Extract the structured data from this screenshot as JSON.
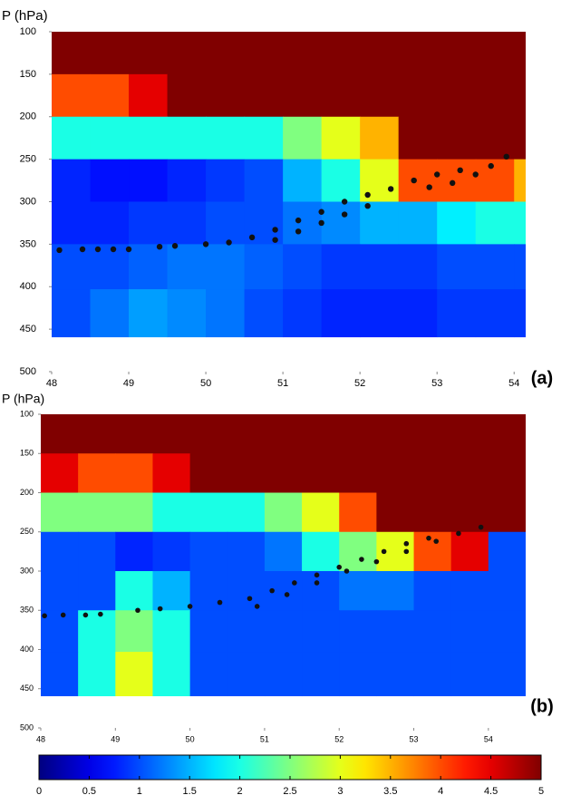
{
  "chart_data": [
    {
      "type": "heatmap",
      "ylabel": "P (hPa)",
      "panel_label": "(a)",
      "colormap": "jet",
      "clim": [
        0,
        5
      ],
      "xlim": [
        48,
        54.15
      ],
      "ylim": [
        500,
        100
      ],
      "xticks": [
        48,
        49,
        50,
        51,
        52,
        53,
        54
      ],
      "yticks": [
        100,
        150,
        200,
        250,
        300,
        350,
        400,
        450,
        500
      ],
      "x": [
        48.25,
        48.75,
        49.25,
        49.75,
        50.25,
        50.75,
        51.25,
        51.75,
        52.25,
        52.75,
        53.25,
        53.75,
        54.25
      ],
      "y": [
        125,
        175,
        225,
        275,
        325,
        375,
        431
      ],
      "z": [
        [
          5,
          5,
          5,
          5,
          5,
          5,
          5,
          5,
          5,
          5,
          5,
          5,
          5
        ],
        [
          4,
          4,
          4.5,
          5,
          5,
          5,
          5,
          5,
          5,
          5,
          5,
          5,
          5
        ],
        [
          2,
          2,
          2,
          2,
          2,
          2,
          2.5,
          3,
          3.5,
          5,
          5,
          5,
          5
        ],
        [
          0.8,
          0.7,
          0.7,
          0.8,
          0.9,
          1,
          1.5,
          2,
          3,
          4,
          4,
          4,
          3.5
        ],
        [
          0.8,
          0.8,
          0.9,
          0.9,
          1,
          1,
          1.2,
          1.3,
          1.5,
          1.5,
          1.8,
          2,
          2
        ],
        [
          1,
          1,
          1.1,
          1.2,
          1.2,
          1.1,
          1,
          0.9,
          0.9,
          0.9,
          1,
          1,
          1
        ],
        [
          1,
          1.2,
          1.4,
          1.3,
          1.2,
          1,
          0.9,
          0.8,
          0.8,
          0.8,
          0.9,
          0.9,
          0.9
        ]
      ],
      "scatter": {
        "color": "#111111",
        "x": [
          48.1,
          48.4,
          48.6,
          48.8,
          49,
          49.4,
          49.6,
          50,
          50.3,
          50.6,
          50.9,
          51.2,
          51.5,
          51.8,
          52.1,
          52.4,
          52.7,
          53,
          53.3,
          50.9,
          51.2,
          51.5,
          51.8,
          52.1,
          52.9,
          53.2,
          53.5,
          53.7,
          53.9
        ],
        "y": [
          357,
          356,
          356,
          356,
          356,
          353,
          352,
          350,
          348,
          342,
          333,
          322,
          312,
          300,
          292,
          285,
          275,
          268,
          263,
          345,
          335,
          325,
          315,
          305,
          283,
          278,
          268,
          258,
          247
        ]
      }
    },
    {
      "type": "heatmap",
      "ylabel": "P (hPa)",
      "panel_label": "(b)",
      "colormap": "jet",
      "clim": [
        0,
        5
      ],
      "xlim": [
        48,
        54.5
      ],
      "ylim": [
        500,
        100
      ],
      "xticks": [
        48,
        49,
        50,
        51,
        52,
        53,
        54
      ],
      "yticks": [
        100,
        150,
        200,
        250,
        300,
        350,
        400,
        450,
        500
      ],
      "x": [
        48.25,
        48.75,
        49.25,
        49.75,
        50.25,
        50.75,
        51.25,
        51.75,
        52.25,
        52.75,
        53.25,
        53.75,
        54.25
      ],
      "y": [
        125,
        175,
        225,
        275,
        325,
        375,
        431
      ],
      "z": [
        [
          5,
          5,
          5,
          5,
          5,
          5,
          5,
          5,
          5,
          5,
          5,
          5,
          5
        ],
        [
          4.5,
          4,
          4,
          4.5,
          5,
          5,
          5,
          5,
          5,
          5,
          5,
          5,
          5
        ],
        [
          2.5,
          2.5,
          2.5,
          2,
          2,
          2,
          2.5,
          3,
          4,
          5,
          5,
          5,
          5
        ],
        [
          1,
          1,
          0.8,
          0.9,
          1,
          1,
          1.2,
          2,
          2.5,
          3,
          4,
          4.5,
          1
        ],
        [
          1,
          1,
          2,
          1.5,
          1,
          1,
          1,
          1,
          1.2,
          1.2,
          1,
          1,
          1
        ],
        [
          1,
          2,
          2.5,
          2,
          1,
          1,
          1,
          1,
          1,
          1,
          1,
          1,
          1
        ],
        [
          1,
          2,
          3,
          2,
          1,
          1,
          1,
          1,
          1,
          1,
          1,
          1,
          1
        ]
      ],
      "scatter": {
        "color": "#111111",
        "x": [
          48.05,
          48.3,
          48.6,
          48.8,
          49.3,
          49.6,
          50,
          50.4,
          50.8,
          51.1,
          51.4,
          51.7,
          52,
          52.3,
          52.6,
          52.9,
          53.2,
          50.9,
          51.3,
          51.7,
          52.1,
          52.5,
          52.9,
          53.3,
          53.6,
          53.9
        ],
        "y": [
          357,
          356,
          356,
          355,
          350,
          348,
          345,
          340,
          335,
          325,
          315,
          305,
          295,
          285,
          275,
          265,
          258,
          345,
          330,
          315,
          300,
          288,
          275,
          262,
          252,
          244
        ]
      }
    },
    {
      "type": "colorbar",
      "colormap": "jet",
      "xlim": [
        0,
        5
      ],
      "xticks": [
        0,
        0.5,
        1,
        1.5,
        2,
        2.5,
        3,
        3.5,
        4,
        4.5,
        5
      ]
    }
  ]
}
